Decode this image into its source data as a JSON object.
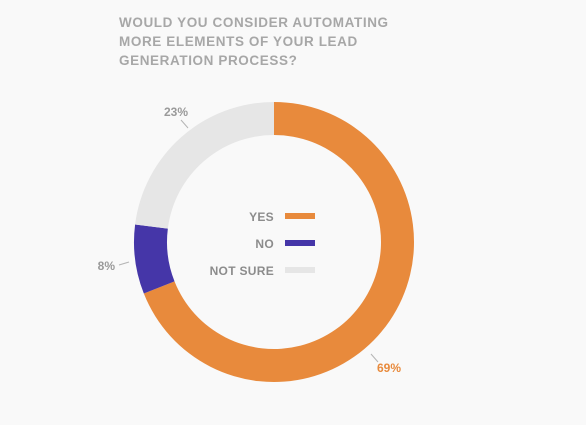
{
  "title_lines": [
    "WOULD YOU CONSIDER AUTOMATING",
    "MORE ELEMENTS OF YOUR LEAD",
    "GENERATION PROCESS?"
  ],
  "chart_data": {
    "type": "pie",
    "variant": "donut",
    "title": "WOULD YOU CONSIDER AUTOMATING MORE ELEMENTS OF YOUR LEAD GENERATION PROCESS?",
    "categories": [
      "YES",
      "NO",
      "NOT SURE"
    ],
    "values": [
      69,
      8,
      23
    ],
    "data_labels": [
      "69%",
      "8%",
      "23%"
    ],
    "colors": [
      "#e88a3c",
      "#4536a8",
      "#e6e6e6"
    ],
    "label_colors": [
      "#e88a3c",
      "#9a9a9a",
      "#9a9a9a"
    ],
    "legend_position": "center",
    "start_angle_deg": 0,
    "direction": "clockwise"
  }
}
